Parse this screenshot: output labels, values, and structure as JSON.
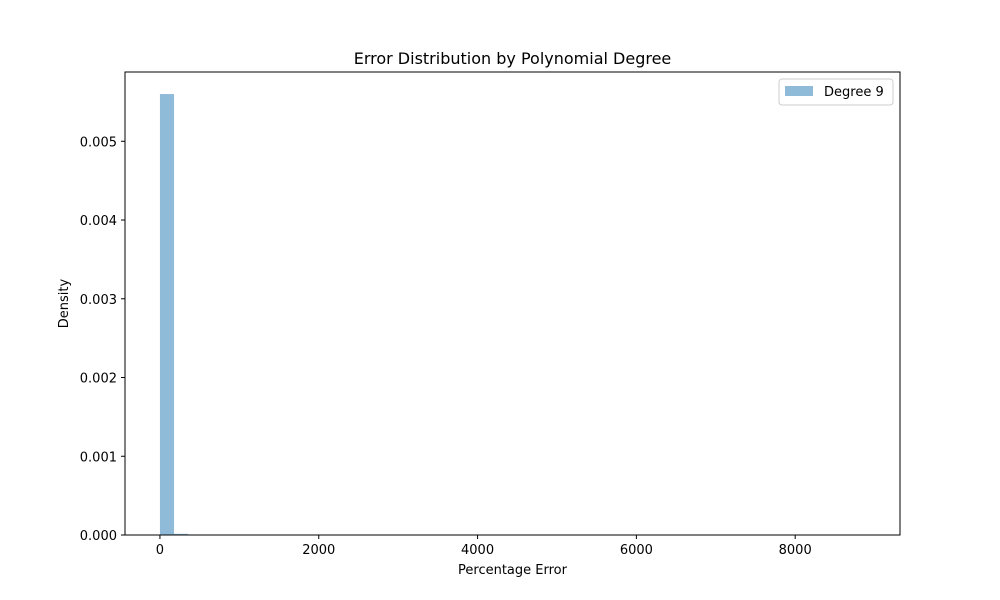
{
  "chart_data": {
    "type": "bar",
    "title": "Error Distribution by Polynomial Degree",
    "xlabel": "Percentage Error",
    "ylabel": "Density",
    "xlim": [
      -440,
      9320
    ],
    "ylim": [
      0,
      0.00588
    ],
    "xticks": [
      0,
      2000,
      4000,
      6000,
      8000
    ],
    "xtick_labels": [
      "0",
      "2000",
      "4000",
      "6000",
      "8000"
    ],
    "yticks": [
      0,
      0.001,
      0.002,
      0.003,
      0.004,
      0.005
    ],
    "ytick_labels": [
      "0.000",
      "0.001",
      "0.002",
      "0.003",
      "0.004",
      "0.005"
    ],
    "bin_width": 177.7,
    "bin_edges_start": 0,
    "series": [
      {
        "name": "Degree 9",
        "color": "#1f77b4",
        "alpha": 0.5,
        "values": [
          0.0056,
          1.5e-05,
          4e-06,
          0,
          0,
          0,
          0,
          0,
          0,
          0,
          0,
          0,
          0,
          0,
          0,
          0,
          0,
          0,
          0,
          0,
          0,
          0,
          0,
          0,
          0,
          0,
          0,
          0,
          0,
          0,
          0,
          0,
          0,
          0,
          0,
          0,
          0,
          0,
          0,
          0,
          0,
          0,
          0,
          0,
          0,
          0,
          0,
          0,
          0,
          1e-06
        ]
      }
    ],
    "legend_position": "upper right",
    "grid": false
  }
}
